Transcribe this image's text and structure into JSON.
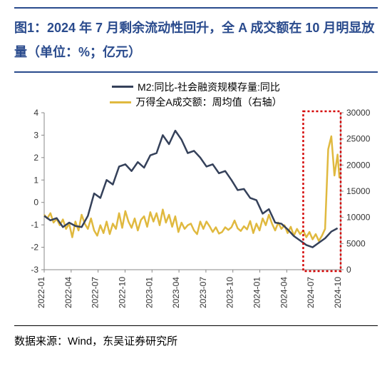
{
  "title": {
    "label": "图1：",
    "text": "2024 年 7 月剩余流动性回升，全 A 成交额在 10 月明显放量（单位：%；亿元）",
    "color": "#2a4b8d",
    "fontsize": 18,
    "rule_color": "#2a4b8d"
  },
  "legend": {
    "series1": {
      "label": "M2:同比-社会融资规模存量:同比",
      "color": "#35415a"
    },
    "series2": {
      "label": "万得全A成交额：周均值（右轴）",
      "color": "#e0b93f"
    },
    "fontsize": 14
  },
  "chart": {
    "type": "line-dual-axis",
    "background": "#ffffff",
    "axis_color": "#888888",
    "axis_fontsize": 12,
    "tick_fontsize": 12,
    "y_left": {
      "min": -3,
      "max": 4,
      "ticks": [
        -3,
        -2,
        -1,
        0,
        1,
        2,
        3,
        4
      ]
    },
    "y_right": {
      "min": 0,
      "max": 30000,
      "ticks": [
        0,
        5000,
        10000,
        15000,
        20000,
        25000,
        30000
      ]
    },
    "x_labels": [
      "2022-01",
      "2022-04",
      "2022-07",
      "2022-10",
      "2023-01",
      "2023-04",
      "2023-07",
      "2023-10",
      "2024-01",
      "2024-04",
      "2024-07",
      "2024-10"
    ],
    "series1": {
      "color": "#35415a",
      "width": 2.5,
      "data": [
        [
          0,
          -0.6
        ],
        [
          1,
          -0.8
        ],
        [
          2,
          -0.7
        ],
        [
          3,
          -1.1
        ],
        [
          4,
          -0.9
        ],
        [
          5,
          -1.05
        ],
        [
          6,
          -1.1
        ],
        [
          7,
          -0.6
        ],
        [
          8,
          0.4
        ],
        [
          9,
          0.2
        ],
        [
          10,
          1.0
        ],
        [
          11,
          0.8
        ],
        [
          12,
          1.6
        ],
        [
          13,
          1.7
        ],
        [
          14,
          1.4
        ],
        [
          15,
          1.8
        ],
        [
          16,
          1.55
        ],
        [
          17,
          2.1
        ],
        [
          18,
          2.2
        ],
        [
          19,
          3.0
        ],
        [
          20,
          2.6
        ],
        [
          21,
          3.2
        ],
        [
          22,
          2.8
        ],
        [
          23,
          2.2
        ],
        [
          24,
          2.3
        ],
        [
          25,
          2.0
        ],
        [
          26,
          1.6
        ],
        [
          27,
          1.7
        ],
        [
          28,
          1.3
        ],
        [
          29,
          1.4
        ],
        [
          30,
          1.0
        ],
        [
          31,
          0.55
        ],
        [
          32,
          0.6
        ],
        [
          33,
          0.2
        ],
        [
          34,
          0.1
        ],
        [
          35,
          -0.5
        ],
        [
          36,
          -0.3
        ],
        [
          37,
          -0.9
        ],
        [
          38,
          -0.95
        ],
        [
          39,
          -1.2
        ],
        [
          40,
          -1.5
        ],
        [
          41,
          -1.7
        ],
        [
          42,
          -1.9
        ],
        [
          43,
          -2.0
        ],
        [
          44,
          -1.8
        ],
        [
          45,
          -1.6
        ],
        [
          46,
          -1.3
        ],
        [
          47,
          -1.15
        ]
      ]
    },
    "series2": {
      "color": "#e0b93f",
      "width": 2.5,
      "data": [
        [
          0,
          10500
        ],
        [
          0.5,
          9800
        ],
        [
          1,
          10800
        ],
        [
          1.5,
          9000
        ],
        [
          2,
          9700
        ],
        [
          2.5,
          8500
        ],
        [
          3,
          9600
        ],
        [
          3.5,
          7800
        ],
        [
          4,
          8800
        ],
        [
          4.5,
          6200
        ],
        [
          5,
          9200
        ],
        [
          5.5,
          7500
        ],
        [
          6,
          10500
        ],
        [
          6.5,
          8800
        ],
        [
          7,
          7800
        ],
        [
          7.5,
          9800
        ],
        [
          8,
          7500
        ],
        [
          8.5,
          6500
        ],
        [
          9,
          8500
        ],
        [
          9.5,
          7000
        ],
        [
          10,
          9200
        ],
        [
          10.5,
          6800
        ],
        [
          11,
          8800
        ],
        [
          11.5,
          7800
        ],
        [
          12,
          10800
        ],
        [
          12.5,
          8000
        ],
        [
          13,
          11200
        ],
        [
          13.5,
          9200
        ],
        [
          14,
          8000
        ],
        [
          14.5,
          9800
        ],
        [
          15,
          7500
        ],
        [
          15.5,
          9500
        ],
        [
          16,
          10200
        ],
        [
          16.5,
          8200
        ],
        [
          17,
          11000
        ],
        [
          17.5,
          9200
        ],
        [
          18,
          10800
        ],
        [
          18.5,
          8500
        ],
        [
          19,
          11500
        ],
        [
          19.5,
          9000
        ],
        [
          20,
          10500
        ],
        [
          20.5,
          8200
        ],
        [
          21,
          10200
        ],
        [
          21.5,
          7200
        ],
        [
          22,
          9000
        ],
        [
          22.5,
          7800
        ],
        [
          23,
          8500
        ],
        [
          23.5,
          8800
        ],
        [
          24,
          7500
        ],
        [
          24.5,
          6800
        ],
        [
          25,
          9200
        ],
        [
          25.5,
          7800
        ],
        [
          26,
          9200
        ],
        [
          26.5,
          8300
        ],
        [
          27,
          7200
        ],
        [
          27.5,
          8100
        ],
        [
          28,
          6900
        ],
        [
          28.5,
          7200
        ],
        [
          29,
          8100
        ],
        [
          29.5,
          7600
        ],
        [
          30,
          8100
        ],
        [
          30.5,
          9400
        ],
        [
          31,
          7900
        ],
        [
          31.5,
          7400
        ],
        [
          32,
          8300
        ],
        [
          32.5,
          7700
        ],
        [
          33,
          9300
        ],
        [
          33.5,
          7000
        ],
        [
          34,
          8800
        ],
        [
          34.5,
          7500
        ],
        [
          35,
          9800
        ],
        [
          35.5,
          8500
        ],
        [
          36,
          10500
        ],
        [
          36.5,
          8800
        ],
        [
          37,
          7500
        ],
        [
          37.5,
          9000
        ],
        [
          38,
          7800
        ],
        [
          38.5,
          8500
        ],
        [
          39,
          7000
        ],
        [
          39.5,
          8200
        ],
        [
          40,
          6500
        ],
        [
          40.5,
          7800
        ],
        [
          41,
          6800
        ],
        [
          41.5,
          7500
        ],
        [
          42,
          6200
        ],
        [
          42.5,
          7200
        ],
        [
          43,
          5800
        ],
        [
          43.5,
          6800
        ],
        [
          44,
          5500
        ],
        [
          44.5,
          6500
        ],
        [
          45,
          7800
        ],
        [
          45.5,
          23000
        ],
        [
          46,
          25500
        ],
        [
          46.5,
          18000
        ],
        [
          47,
          22000
        ],
        [
          47.3,
          17500
        ]
      ]
    },
    "highlight_box": {
      "x_start": 41.5,
      "x_end": 47.5,
      "stroke": "#d40000",
      "dash": "3,3",
      "width": 2.5
    }
  },
  "footer": {
    "text": "数据来源：Wind，东吴证券研究所",
    "fontsize": 15,
    "color": "#000000"
  }
}
